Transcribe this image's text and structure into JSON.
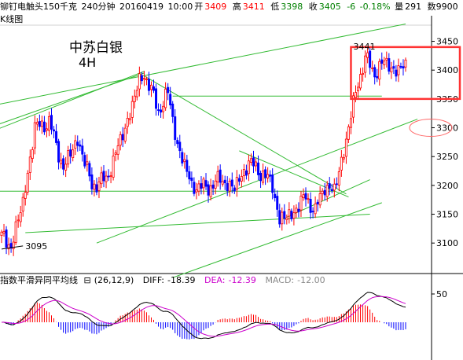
{
  "header": {
    "name": "铆钉电触头150千克",
    "period": "240分钟",
    "date": "20160419",
    "time": "10:00",
    "open_label": "开",
    "open": "3409",
    "high_label": "高",
    "high": "3411",
    "low_label": "低",
    "low": "3398",
    "close_label": "收",
    "close": "3405",
    "change": "-6",
    "change_pct": "-0.18%",
    "volume_label": "量",
    "volume": "291",
    "extra": "数9900"
  },
  "chart_label": "K线图",
  "note": {
    "title": "中苏白银",
    "subtitle": "4H"
  },
  "macd": {
    "title": "指数平滑异同平均线",
    "params": "(26,12,9)",
    "diff_label": "DIFF:",
    "diff": "-18.39",
    "dea_label": "DEA:",
    "dea": "-12.39",
    "macd_label": "MACD:",
    "macd": "-12.00",
    "tick_label": "50"
  },
  "colors": {
    "up": "#ff0000",
    "down": "#0000ff",
    "trendline": "#33bb33",
    "box": "#ff3333",
    "ellipse": "#ff6666",
    "diff": "#000000",
    "dea": "#cc00cc"
  },
  "chart_data": {
    "type": "candlestick",
    "y_ticks": [
      3450,
      3400,
      3350,
      3300,
      3250,
      3200,
      3150,
      3100
    ],
    "ylim": [
      3058,
      3478
    ],
    "annotations": [
      {
        "text": "3095",
        "value": 3095
      },
      {
        "text": "3441",
        "value": 3441
      }
    ],
    "anchors": [
      {
        "i": 0,
        "close": 3110
      },
      {
        "i": 4,
        "close": 3095
      },
      {
        "i": 9,
        "close": 3170
      },
      {
        "i": 14,
        "close": 3300
      },
      {
        "i": 20,
        "close": 3310
      },
      {
        "i": 26,
        "close": 3230
      },
      {
        "i": 32,
        "close": 3280
      },
      {
        "i": 38,
        "close": 3200
      },
      {
        "i": 44,
        "close": 3210
      },
      {
        "i": 52,
        "close": 3300
      },
      {
        "i": 58,
        "close": 3380
      },
      {
        "i": 60,
        "close": 3395
      },
      {
        "i": 66,
        "close": 3330
      },
      {
        "i": 70,
        "close": 3360
      },
      {
        "i": 74,
        "close": 3270
      },
      {
        "i": 80,
        "close": 3200
      },
      {
        "i": 86,
        "close": 3195
      },
      {
        "i": 92,
        "close": 3210
      },
      {
        "i": 98,
        "close": 3195
      },
      {
        "i": 104,
        "close": 3240
      },
      {
        "i": 110,
        "close": 3220
      },
      {
        "i": 114,
        "close": 3200
      },
      {
        "i": 117,
        "close": 3140
      },
      {
        "i": 122,
        "close": 3150
      },
      {
        "i": 128,
        "close": 3180
      },
      {
        "i": 132,
        "close": 3155
      },
      {
        "i": 136,
        "close": 3200
      },
      {
        "i": 140,
        "close": 3190
      },
      {
        "i": 144,
        "close": 3260
      },
      {
        "i": 148,
        "close": 3340
      },
      {
        "i": 150,
        "close": 3380
      },
      {
        "i": 153,
        "close": 3420
      },
      {
        "i": 157,
        "close": 3395
      },
      {
        "i": 161,
        "close": 3415
      },
      {
        "i": 165,
        "close": 3400
      },
      {
        "i": 170,
        "close": 3405
      }
    ]
  }
}
